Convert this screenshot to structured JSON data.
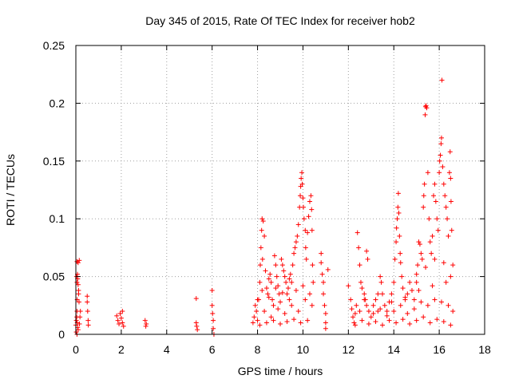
{
  "chart_data": {
    "type": "scatter",
    "title": "Day 345 of 2015, Rate Of TEC Index for receiver hob2",
    "xlabel": "GPS time / hours",
    "ylabel": "ROTI / TECUs",
    "xlim": [
      0,
      18
    ],
    "ylim": [
      0,
      0.25
    ],
    "xticks": [
      "0",
      "2",
      "4",
      "6",
      "8",
      "10",
      "12",
      "14",
      "16",
      "18"
    ],
    "yticks": [
      "0",
      "0.05",
      "0.1",
      "0.15",
      "0.2",
      "0.25"
    ],
    "grid": true,
    "marker": "plus",
    "color": "#ff0000",
    "series": [
      {
        "name": "hob2",
        "points": [
          [
            0.0,
            0.008
          ],
          [
            0.02,
            0.012
          ],
          [
            0.04,
            0.015
          ],
          [
            0.05,
            0.02
          ],
          [
            0.06,
            0.03
          ],
          [
            0.03,
            0.05
          ],
          [
            0.05,
            0.045
          ],
          [
            0.07,
            0.052
          ],
          [
            0.08,
            0.048
          ],
          [
            0.1,
            0.043
          ],
          [
            0.12,
            0.038
          ],
          [
            0.1,
            0.062
          ],
          [
            0.05,
            0.063
          ],
          [
            0.15,
            0.064
          ],
          [
            0.12,
            0.035
          ],
          [
            0.14,
            0.028
          ],
          [
            0.06,
            0.01
          ],
          [
            0.08,
            0.006
          ],
          [
            0.1,
            0.004
          ],
          [
            0.16,
            0.009
          ],
          [
            0.18,
            0.015
          ],
          [
            0.2,
            0.02
          ],
          [
            0.05,
            0.0
          ],
          [
            0.02,
            0.002
          ],
          [
            0.5,
            0.033
          ],
          [
            0.5,
            0.028
          ],
          [
            0.52,
            0.02
          ],
          [
            0.54,
            0.012
          ],
          [
            0.55,
            0.008
          ],
          [
            1.8,
            0.016
          ],
          [
            1.85,
            0.012
          ],
          [
            1.9,
            0.009
          ],
          [
            1.95,
            0.018
          ],
          [
            2.0,
            0.014
          ],
          [
            2.05,
            0.01
          ],
          [
            2.1,
            0.007
          ],
          [
            2.05,
            0.02
          ],
          [
            3.05,
            0.012
          ],
          [
            3.1,
            0.009
          ],
          [
            3.08,
            0.007
          ],
          [
            5.3,
            0.031
          ],
          [
            5.3,
            0.01
          ],
          [
            5.32,
            0.007
          ],
          [
            5.35,
            0.004
          ],
          [
            6.0,
            0.038
          ],
          [
            6.0,
            0.025
          ],
          [
            6.02,
            0.018
          ],
          [
            6.05,
            0.012
          ],
          [
            6.05,
            0.005
          ],
          [
            6.08,
            0.0
          ],
          [
            7.8,
            0.01
          ],
          [
            7.85,
            0.015
          ],
          [
            7.9,
            0.025
          ],
          [
            7.95,
            0.02
          ],
          [
            8.0,
            0.012
          ],
          [
            8.05,
            0.03
          ],
          [
            8.1,
            0.045
          ],
          [
            8.12,
            0.06
          ],
          [
            8.15,
            0.075
          ],
          [
            8.18,
            0.09
          ],
          [
            8.2,
            0.1
          ],
          [
            8.25,
            0.098
          ],
          [
            8.3,
            0.085
          ],
          [
            8.22,
            0.065
          ],
          [
            8.35,
            0.055
          ],
          [
            8.4,
            0.04
          ],
          [
            8.45,
            0.035
          ],
          [
            8.5,
            0.048
          ],
          [
            8.55,
            0.052
          ],
          [
            8.6,
            0.045
          ],
          [
            8.65,
            0.03
          ],
          [
            8.7,
            0.025
          ],
          [
            8.75,
            0.068
          ],
          [
            8.8,
            0.06
          ],
          [
            8.85,
            0.05
          ],
          [
            8.9,
            0.042
          ],
          [
            8.95,
            0.035
          ],
          [
            9.0,
            0.028
          ],
          [
            9.05,
            0.065
          ],
          [
            9.1,
            0.06
          ],
          [
            9.15,
            0.055
          ],
          [
            9.2,
            0.05
          ],
          [
            9.25,
            0.045
          ],
          [
            9.3,
            0.035
          ],
          [
            9.35,
            0.04
          ],
          [
            9.4,
            0.048
          ],
          [
            9.45,
            0.052
          ],
          [
            9.5,
            0.045
          ],
          [
            9.55,
            0.06
          ],
          [
            9.6,
            0.07
          ],
          [
            9.65,
            0.075
          ],
          [
            9.7,
            0.08
          ],
          [
            9.75,
            0.085
          ],
          [
            9.8,
            0.095
          ],
          [
            9.85,
            0.11
          ],
          [
            9.88,
            0.12
          ],
          [
            9.9,
            0.128
          ],
          [
            9.92,
            0.135
          ],
          [
            9.95,
            0.14
          ],
          [
            9.97,
            0.13
          ],
          [
            10.0,
            0.118
          ],
          [
            10.02,
            0.11
          ],
          [
            10.05,
            0.1
          ],
          [
            10.1,
            0.09
          ],
          [
            10.12,
            0.075
          ],
          [
            10.15,
            0.065
          ],
          [
            10.2,
            0.088
          ],
          [
            10.25,
            0.102
          ],
          [
            10.3,
            0.115
          ],
          [
            10.35,
            0.12
          ],
          [
            10.38,
            0.108
          ],
          [
            10.4,
            0.09
          ],
          [
            10.42,
            0.06
          ],
          [
            10.45,
            0.045
          ],
          [
            8.0,
            0.03
          ],
          [
            8.3,
            0.02
          ],
          [
            8.6,
            0.015
          ],
          [
            8.9,
            0.022
          ],
          [
            9.2,
            0.018
          ],
          [
            9.5,
            0.025
          ],
          [
            9.8,
            0.02
          ],
          [
            10.1,
            0.03
          ],
          [
            10.4,
            0.025
          ],
          [
            8.1,
            0.008
          ],
          [
            8.4,
            0.01
          ],
          [
            8.7,
            0.012
          ],
          [
            9.0,
            0.009
          ],
          [
            9.3,
            0.011
          ],
          [
            9.6,
            0.013
          ],
          [
            9.9,
            0.01
          ],
          [
            10.2,
            0.012
          ],
          [
            8.2,
            0.038
          ],
          [
            8.5,
            0.032
          ],
          [
            8.8,
            0.04
          ],
          [
            9.1,
            0.036
          ],
          [
            9.4,
            0.03
          ],
          [
            9.7,
            0.038
          ],
          [
            10.0,
            0.042
          ],
          [
            10.3,
            0.035
          ],
          [
            10.8,
            0.07
          ],
          [
            10.8,
            0.062
          ],
          [
            10.85,
            0.052
          ],
          [
            10.9,
            0.045
          ],
          [
            10.9,
            0.035
          ],
          [
            10.95,
            0.025
          ],
          [
            11.0,
            0.018
          ],
          [
            11.0,
            0.01
          ],
          [
            11.1,
            0.056
          ],
          [
            11.0,
            0.005
          ],
          [
            12.0,
            0.042
          ],
          [
            12.1,
            0.03
          ],
          [
            12.15,
            0.022
          ],
          [
            12.2,
            0.015
          ],
          [
            12.25,
            0.01
          ],
          [
            12.3,
            0.018
          ],
          [
            12.35,
            0.025
          ],
          [
            12.4,
            0.088
          ],
          [
            12.45,
            0.075
          ],
          [
            12.5,
            0.06
          ],
          [
            12.55,
            0.045
          ],
          [
            12.6,
            0.04
          ],
          [
            12.7,
            0.035
          ],
          [
            12.75,
            0.03
          ],
          [
            12.8,
            0.072
          ],
          [
            12.85,
            0.065
          ],
          [
            12.9,
            0.02
          ],
          [
            13.0,
            0.015
          ],
          [
            13.1,
            0.025
          ],
          [
            13.2,
            0.03
          ],
          [
            13.3,
            0.02
          ],
          [
            13.4,
            0.05
          ],
          [
            13.45,
            0.045
          ],
          [
            13.5,
            0.035
          ],
          [
            13.6,
            0.025
          ],
          [
            13.7,
            0.02
          ],
          [
            13.8,
            0.028
          ],
          [
            13.9,
            0.035
          ],
          [
            14.0,
            0.045
          ],
          [
            14.05,
            0.065
          ],
          [
            14.1,
            0.08
          ],
          [
            14.12,
            0.092
          ],
          [
            14.15,
            0.1
          ],
          [
            14.18,
            0.11
          ],
          [
            14.2,
            0.122
          ],
          [
            14.22,
            0.105
          ],
          [
            14.25,
            0.085
          ],
          [
            14.28,
            0.07
          ],
          [
            14.3,
            0.062
          ],
          [
            14.35,
            0.05
          ],
          [
            14.4,
            0.04
          ],
          [
            14.5,
            0.03
          ],
          [
            14.6,
            0.035
          ],
          [
            14.7,
            0.045
          ],
          [
            14.8,
            0.038
          ],
          [
            14.9,
            0.03
          ],
          [
            15.0,
            0.045
          ],
          [
            15.05,
            0.06
          ],
          [
            15.1,
            0.08
          ],
          [
            15.15,
            0.078
          ],
          [
            15.2,
            0.07
          ],
          [
            15.25,
            0.065
          ],
          [
            15.3,
            0.11
          ],
          [
            15.32,
            0.12
          ],
          [
            15.35,
            0.13
          ],
          [
            15.38,
            0.19
          ],
          [
            15.4,
            0.197
          ],
          [
            15.42,
            0.198
          ],
          [
            15.45,
            0.196
          ],
          [
            15.5,
            0.14
          ],
          [
            15.55,
            0.1
          ],
          [
            15.6,
            0.08
          ],
          [
            15.65,
            0.07
          ],
          [
            15.7,
            0.085
          ],
          [
            15.75,
            0.12
          ],
          [
            15.8,
            0.13
          ],
          [
            15.85,
            0.115
          ],
          [
            15.9,
            0.1
          ],
          [
            15.95,
            0.09
          ],
          [
            16.0,
            0.14
          ],
          [
            16.02,
            0.15
          ],
          [
            16.05,
            0.155
          ],
          [
            16.08,
            0.165
          ],
          [
            16.1,
            0.17
          ],
          [
            16.12,
            0.22
          ],
          [
            16.15,
            0.145
          ],
          [
            16.2,
            0.13
          ],
          [
            16.25,
            0.12
          ],
          [
            16.3,
            0.11
          ],
          [
            16.35,
            0.1
          ],
          [
            16.4,
            0.085
          ],
          [
            16.45,
            0.14
          ],
          [
            16.48,
            0.158
          ],
          [
            16.5,
            0.135
          ],
          [
            16.52,
            0.115
          ],
          [
            16.55,
            0.09
          ],
          [
            16.6,
            0.06
          ],
          [
            16.6,
            0.02
          ],
          [
            12.3,
            0.008
          ],
          [
            12.6,
            0.012
          ],
          [
            12.9,
            0.009
          ],
          [
            13.2,
            0.011
          ],
          [
            13.5,
            0.008
          ],
          [
            13.8,
            0.012
          ],
          [
            14.1,
            0.01
          ],
          [
            14.4,
            0.013
          ],
          [
            14.7,
            0.009
          ],
          [
            15.0,
            0.012
          ],
          [
            15.3,
            0.015
          ],
          [
            15.6,
            0.01
          ],
          [
            15.9,
            0.013
          ],
          [
            16.2,
            0.011
          ],
          [
            16.5,
            0.008
          ],
          [
            12.5,
            0.02
          ],
          [
            12.8,
            0.025
          ],
          [
            13.1,
            0.018
          ],
          [
            13.4,
            0.022
          ],
          [
            13.7,
            0.016
          ],
          [
            14.0,
            0.02
          ],
          [
            14.3,
            0.025
          ],
          [
            14.6,
            0.018
          ],
          [
            14.9,
            0.022
          ],
          [
            15.2,
            0.028
          ],
          [
            15.5,
            0.025
          ],
          [
            15.8,
            0.03
          ],
          [
            16.1,
            0.028
          ],
          [
            16.4,
            0.025
          ],
          [
            12.7,
            0.03
          ],
          [
            13.3,
            0.035
          ],
          [
            13.9,
            0.028
          ],
          [
            14.5,
            0.032
          ],
          [
            15.1,
            0.038
          ],
          [
            15.7,
            0.042
          ],
          [
            16.3,
            0.045
          ],
          [
            15.0,
            0.052
          ],
          [
            15.4,
            0.058
          ],
          [
            15.8,
            0.065
          ],
          [
            16.2,
            0.062
          ],
          [
            16.5,
            0.05
          ]
        ]
      }
    ]
  }
}
